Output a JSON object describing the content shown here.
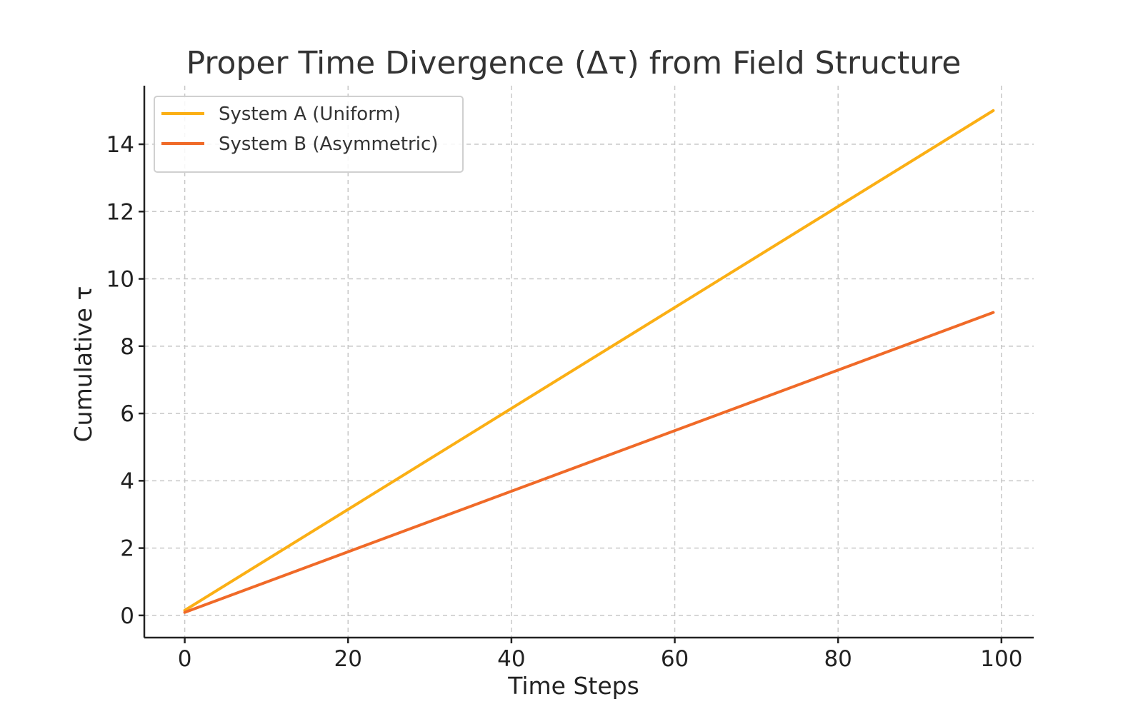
{
  "chart_data": {
    "type": "line",
    "title": "Proper Time Divergence (Δτ) from Field Structure",
    "xlabel": "Time Steps",
    "ylabel": "Cumulative τ",
    "xlim": [
      -4.95,
      103.95
    ],
    "ylim": [
      -0.66,
      15.74
    ],
    "xticks": [
      0,
      20,
      40,
      60,
      80,
      100
    ],
    "yticks": [
      0,
      2,
      4,
      6,
      8,
      10,
      12,
      14
    ],
    "grid": true,
    "legend_position": "top-left",
    "series": [
      {
        "name": "System A (Uniform)",
        "color": "#FBAF14",
        "x": [
          0,
          99
        ],
        "y": [
          0.15,
          15.0
        ]
      },
      {
        "name": "System B (Asymmetric)",
        "color": "#F06A28",
        "x": [
          0,
          99
        ],
        "y": [
          0.09,
          9.0
        ]
      }
    ]
  }
}
